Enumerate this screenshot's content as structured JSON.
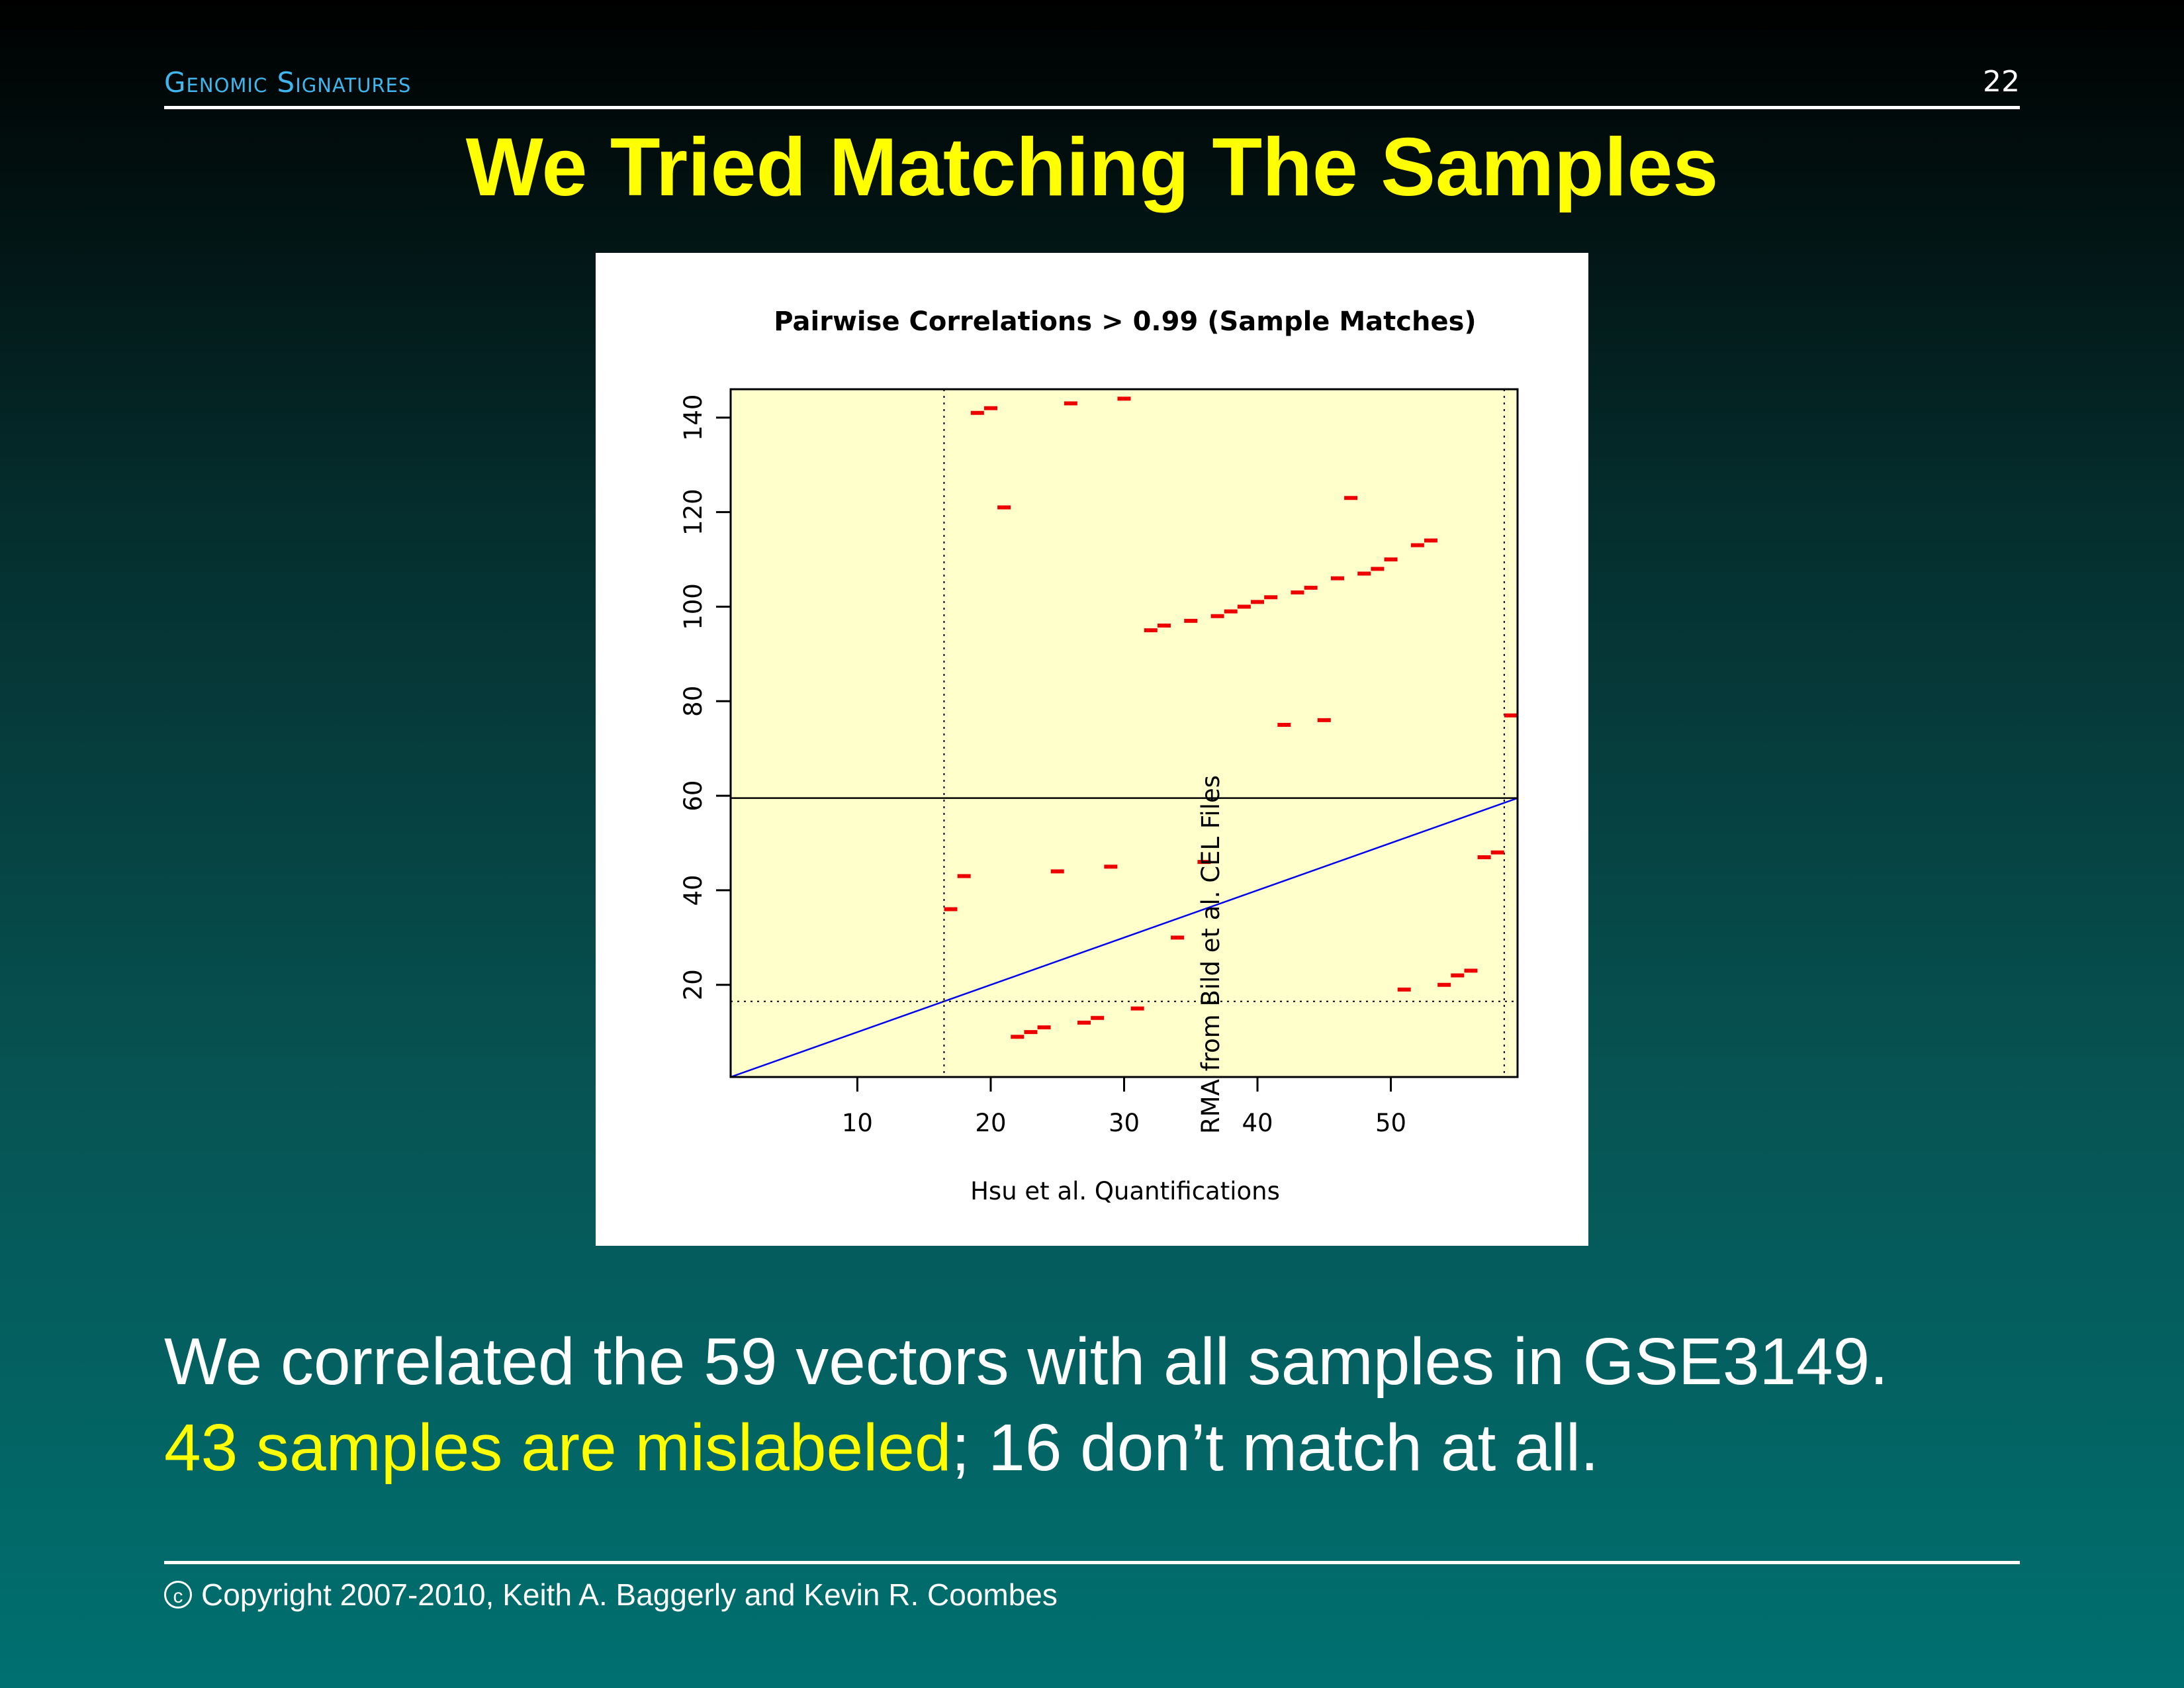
{
  "header": {
    "section_label": "Genomic Signatures",
    "page_number": "22"
  },
  "title": "We Tried Matching The Samples",
  "body": {
    "line1": "We correlated the 59 vectors with all samples in GSE3149.",
    "line2_highlight": "43 samples are mislabeled",
    "line2_rest": "; 16 don’t match at all."
  },
  "footer": {
    "copyright_symbol": "c",
    "text": "Copyright 2007-2010, Keith A. Baggerly and Kevin R. Coombes"
  },
  "colors": {
    "title": "#ffff00",
    "section_label": "#3fb6ee",
    "plot_background": "#ffffcc",
    "points": "#ee0000",
    "identity_line": "#0000ee"
  },
  "chart_data": {
    "type": "scatter",
    "title": "Pairwise Correlations > 0.99 (Sample Matches)",
    "xlabel": "Hsu et al. Quantifications",
    "ylabel": "RMA from Bild et al. CEL Files",
    "xlim": [
      0.5,
      59.5
    ],
    "ylim": [
      0.5,
      146
    ],
    "xticks": [
      10,
      20,
      30,
      40,
      50
    ],
    "yticks": [
      20,
      40,
      60,
      80,
      100,
      120,
      140
    ],
    "marker": "short horizontal dash",
    "grid": false,
    "reference_lines": {
      "identity_line": "y = x",
      "horizontal_solid": 59.5,
      "horizontal_dotted": 16.5,
      "vertical_dotted": [
        16.5,
        58.5
      ]
    },
    "points": [
      {
        "x": 17,
        "y": 36
      },
      {
        "x": 18,
        "y": 43
      },
      {
        "x": 19,
        "y": 141
      },
      {
        "x": 20,
        "y": 142
      },
      {
        "x": 21,
        "y": 121
      },
      {
        "x": 22,
        "y": 9
      },
      {
        "x": 23,
        "y": 10
      },
      {
        "x": 24,
        "y": 11
      },
      {
        "x": 25,
        "y": 44
      },
      {
        "x": 26,
        "y": 143
      },
      {
        "x": 27,
        "y": 12
      },
      {
        "x": 28,
        "y": 13
      },
      {
        "x": 29,
        "y": 45
      },
      {
        "x": 30,
        "y": 144
      },
      {
        "x": 31,
        "y": 15
      },
      {
        "x": 32,
        "y": 95
      },
      {
        "x": 33,
        "y": 96
      },
      {
        "x": 34,
        "y": 30
      },
      {
        "x": 35,
        "y": 97
      },
      {
        "x": 36,
        "y": 46
      },
      {
        "x": 37,
        "y": 98
      },
      {
        "x": 38,
        "y": 99
      },
      {
        "x": 39,
        "y": 100
      },
      {
        "x": 40,
        "y": 101
      },
      {
        "x": 41,
        "y": 102
      },
      {
        "x": 42,
        "y": 75
      },
      {
        "x": 43,
        "y": 103
      },
      {
        "x": 44,
        "y": 104
      },
      {
        "x": 45,
        "y": 76
      },
      {
        "x": 46,
        "y": 106
      },
      {
        "x": 47,
        "y": 123
      },
      {
        "x": 48,
        "y": 107
      },
      {
        "x": 49,
        "y": 108
      },
      {
        "x": 50,
        "y": 110
      },
      {
        "x": 51,
        "y": 19
      },
      {
        "x": 52,
        "y": 113
      },
      {
        "x": 53,
        "y": 114
      },
      {
        "x": 54,
        "y": 20
      },
      {
        "x": 55,
        "y": 22
      },
      {
        "x": 56,
        "y": 23
      },
      {
        "x": 57,
        "y": 47
      },
      {
        "x": 58,
        "y": 48
      },
      {
        "x": 59,
        "y": 77
      }
    ]
  }
}
